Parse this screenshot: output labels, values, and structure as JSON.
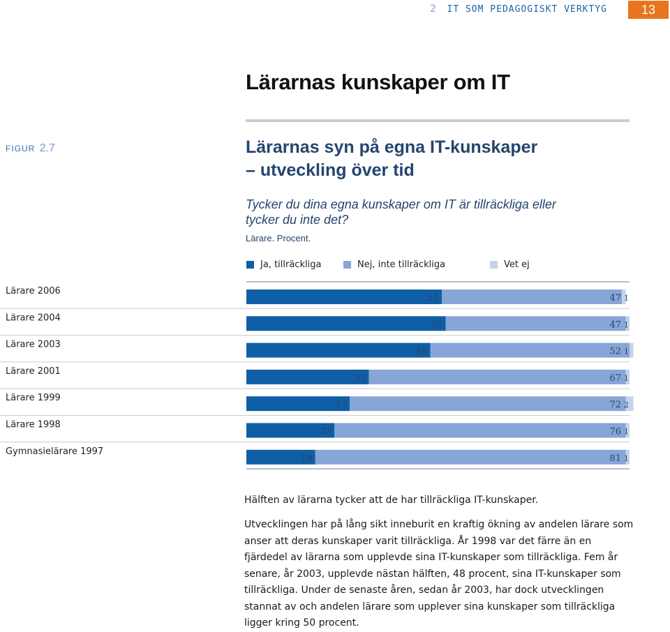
{
  "header": {
    "chapter_number": "2",
    "chapter_title": "IT SOM PEDAGOGISKT VERKTYG",
    "page_number": "13"
  },
  "section_title": "Lärarnas kunskaper om IT",
  "figure": {
    "label": "FIGUR",
    "number": "2.7",
    "title_line1": "Lärarnas syn på egna IT-kunskaper",
    "title_line2": "– utveckling över tid",
    "question": "Tycker du dina egna kunskaper om IT är tillräckliga eller tycker du inte det?",
    "note": "Lärare. Procent."
  },
  "chart_data": {
    "type": "bar",
    "orientation": "horizontal",
    "stacked": true,
    "categories": [
      "Lärare 2006",
      "Lärare 2004",
      "Lärare 2003",
      "Lärare 2001",
      "Lärare 1999",
      "Lärare 1998",
      "Gymnasielärare 1997"
    ],
    "series": [
      {
        "name": "Ja, tillräckliga",
        "color": "#0f5fa6",
        "values": [
          51,
          52,
          48,
          32,
          27,
          23,
          18
        ]
      },
      {
        "name": "Nej, inte tillräckliga",
        "color": "#87a5d6",
        "values": [
          47,
          47,
          52,
          67,
          72,
          76,
          81
        ]
      },
      {
        "name": "Vet ej",
        "color": "#c5d3ea",
        "values": [
          1,
          1,
          1,
          1,
          2,
          1,
          1
        ]
      }
    ],
    "xlim": [
      0,
      100
    ],
    "legend_position": "top",
    "grid": false,
    "value_labels": true
  },
  "text": {
    "lead": "Hälften av lärarna tycker att de har tillräckliga IT-kunskaper.",
    "body": "Utvecklingen har på lång sikt inneburit en kraftig ökning av andelen lärare som anser att deras kunskaper varit tillräckliga. År 1998 var det färre än en fjärdedel av lärarna som upplevde sina IT-kunskaper som tillräckliga. Fem år senare, år 2003, upplevde nästan hälften, 48 procent, sina IT-kunskaper som tillräckliga. Under de senaste åren, sedan år 2003, har dock utvecklingen stannat av och andelen lärare som upplever sina kunskaper som tillräckliga ligger kring 50 procent."
  }
}
